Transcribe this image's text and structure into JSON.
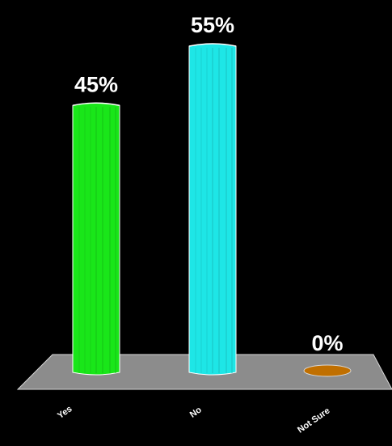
{
  "chart_data": {
    "type": "bar",
    "title": "",
    "xlabel": "",
    "ylabel": "",
    "categories": [
      "Yes",
      "No",
      "Not Sure"
    ],
    "values": [
      45,
      55,
      0
    ],
    "data_labels": [
      "45%",
      "55%",
      "0%"
    ],
    "ylim": [
      0,
      55
    ],
    "unit": "%",
    "grid": false,
    "legend": "none",
    "colors": {
      "background": "#000000",
      "floor": "#8c8c8c",
      "floor_edge": "#d9d9d9",
      "bar_colors": [
        "#19e619",
        "#1ee6e6",
        "#c06f00"
      ],
      "bar_edge": "#ffffff",
      "label_color": "#ffffff"
    }
  }
}
